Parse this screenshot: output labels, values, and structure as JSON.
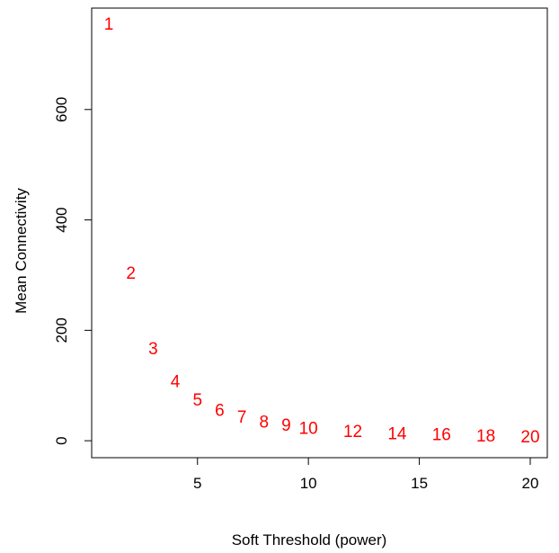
{
  "chart_data": {
    "type": "scatter",
    "title": "",
    "xlabel": "Soft Threshold (power)",
    "ylabel": "Mean Connectivity",
    "xlim": [
      0.23,
      20.77
    ],
    "ylim": [
      -30.72,
      783.72
    ],
    "xticks": [
      5,
      10,
      15,
      20
    ],
    "yticks": [
      0,
      200,
      400,
      600
    ],
    "grid": false,
    "legend": "none",
    "point_color": "#ff0000",
    "points": [
      {
        "x": 1,
        "y": 753,
        "label": "1"
      },
      {
        "x": 2,
        "y": 302,
        "label": "2"
      },
      {
        "x": 3,
        "y": 165,
        "label": "3"
      },
      {
        "x": 4,
        "y": 105,
        "label": "4"
      },
      {
        "x": 5,
        "y": 72,
        "label": "5"
      },
      {
        "x": 6,
        "y": 53,
        "label": "6"
      },
      {
        "x": 7,
        "y": 41,
        "label": "7"
      },
      {
        "x": 8,
        "y": 32,
        "label": "8"
      },
      {
        "x": 9,
        "y": 26,
        "label": "9"
      },
      {
        "x": 10,
        "y": 21,
        "label": "10"
      },
      {
        "x": 12,
        "y": 15,
        "label": "12"
      },
      {
        "x": 14,
        "y": 11,
        "label": "14"
      },
      {
        "x": 16,
        "y": 9,
        "label": "16"
      },
      {
        "x": 18,
        "y": 7,
        "label": "18"
      },
      {
        "x": 20,
        "y": 5,
        "label": "20"
      }
    ]
  }
}
